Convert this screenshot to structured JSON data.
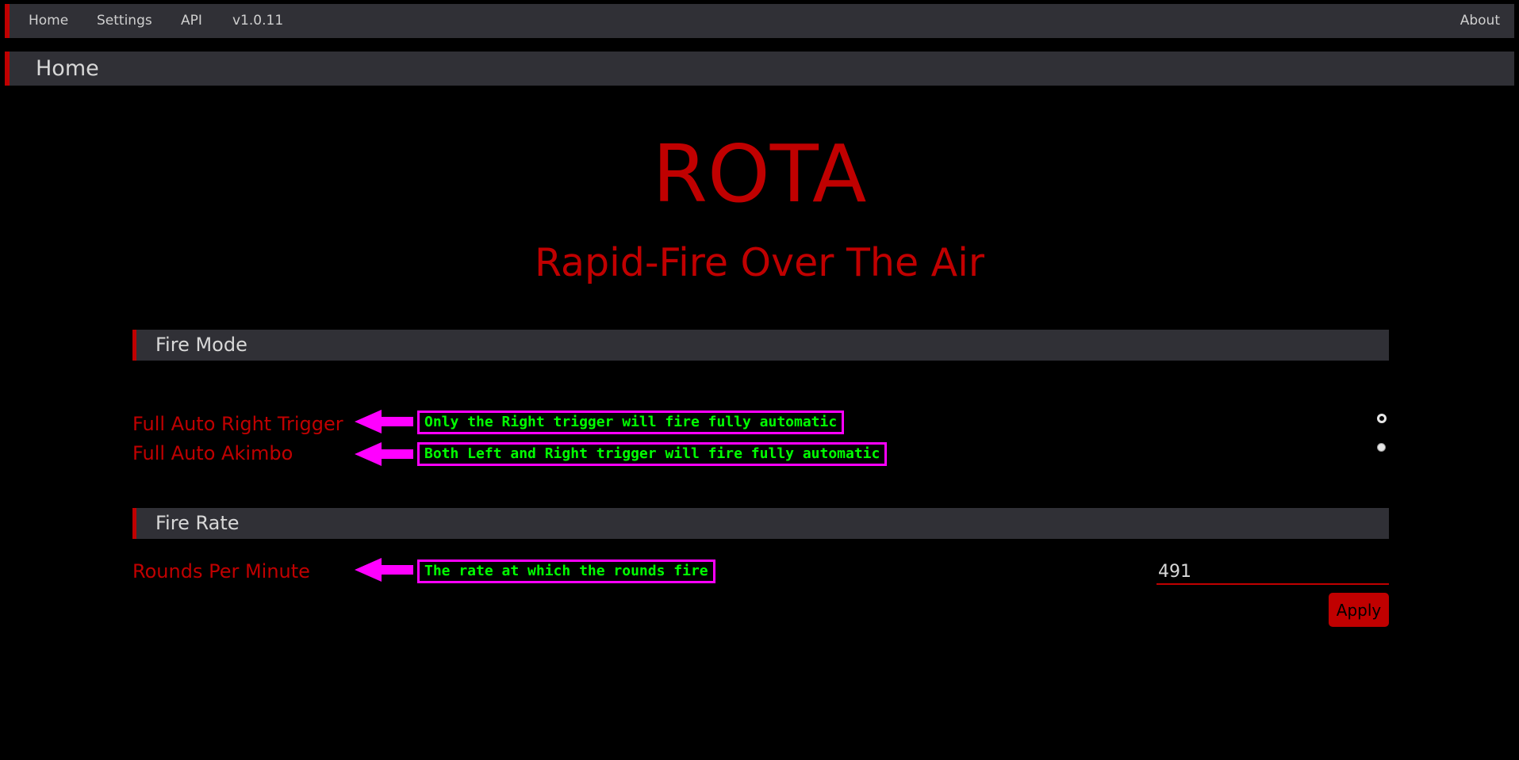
{
  "nav": {
    "items": [
      "Home",
      "Settings",
      "API",
      "v1.0.11"
    ],
    "about": "About"
  },
  "page_header": {
    "title": "Home"
  },
  "brand": {
    "title": "ROTA",
    "subtitle": "Rapid-Fire Over The Air"
  },
  "fire_mode": {
    "heading": "Fire Mode",
    "options": [
      {
        "label": "Full Auto Right Trigger",
        "note": "Only the Right trigger will fire fully automatic",
        "selected": true
      },
      {
        "label": "Full Auto Akimbo",
        "note": "Both Left and Right trigger will fire fully automatic",
        "selected": false
      }
    ]
  },
  "fire_rate": {
    "heading": "Fire Rate",
    "label": "Rounds Per Minute",
    "note": "The rate at which the rounds fire",
    "value": "491",
    "apply_label": "Apply"
  },
  "colors": {
    "accent": "#c00000",
    "annotation_border": "#ff00ff",
    "annotation_text": "#00ff00",
    "bar": "#303036"
  }
}
